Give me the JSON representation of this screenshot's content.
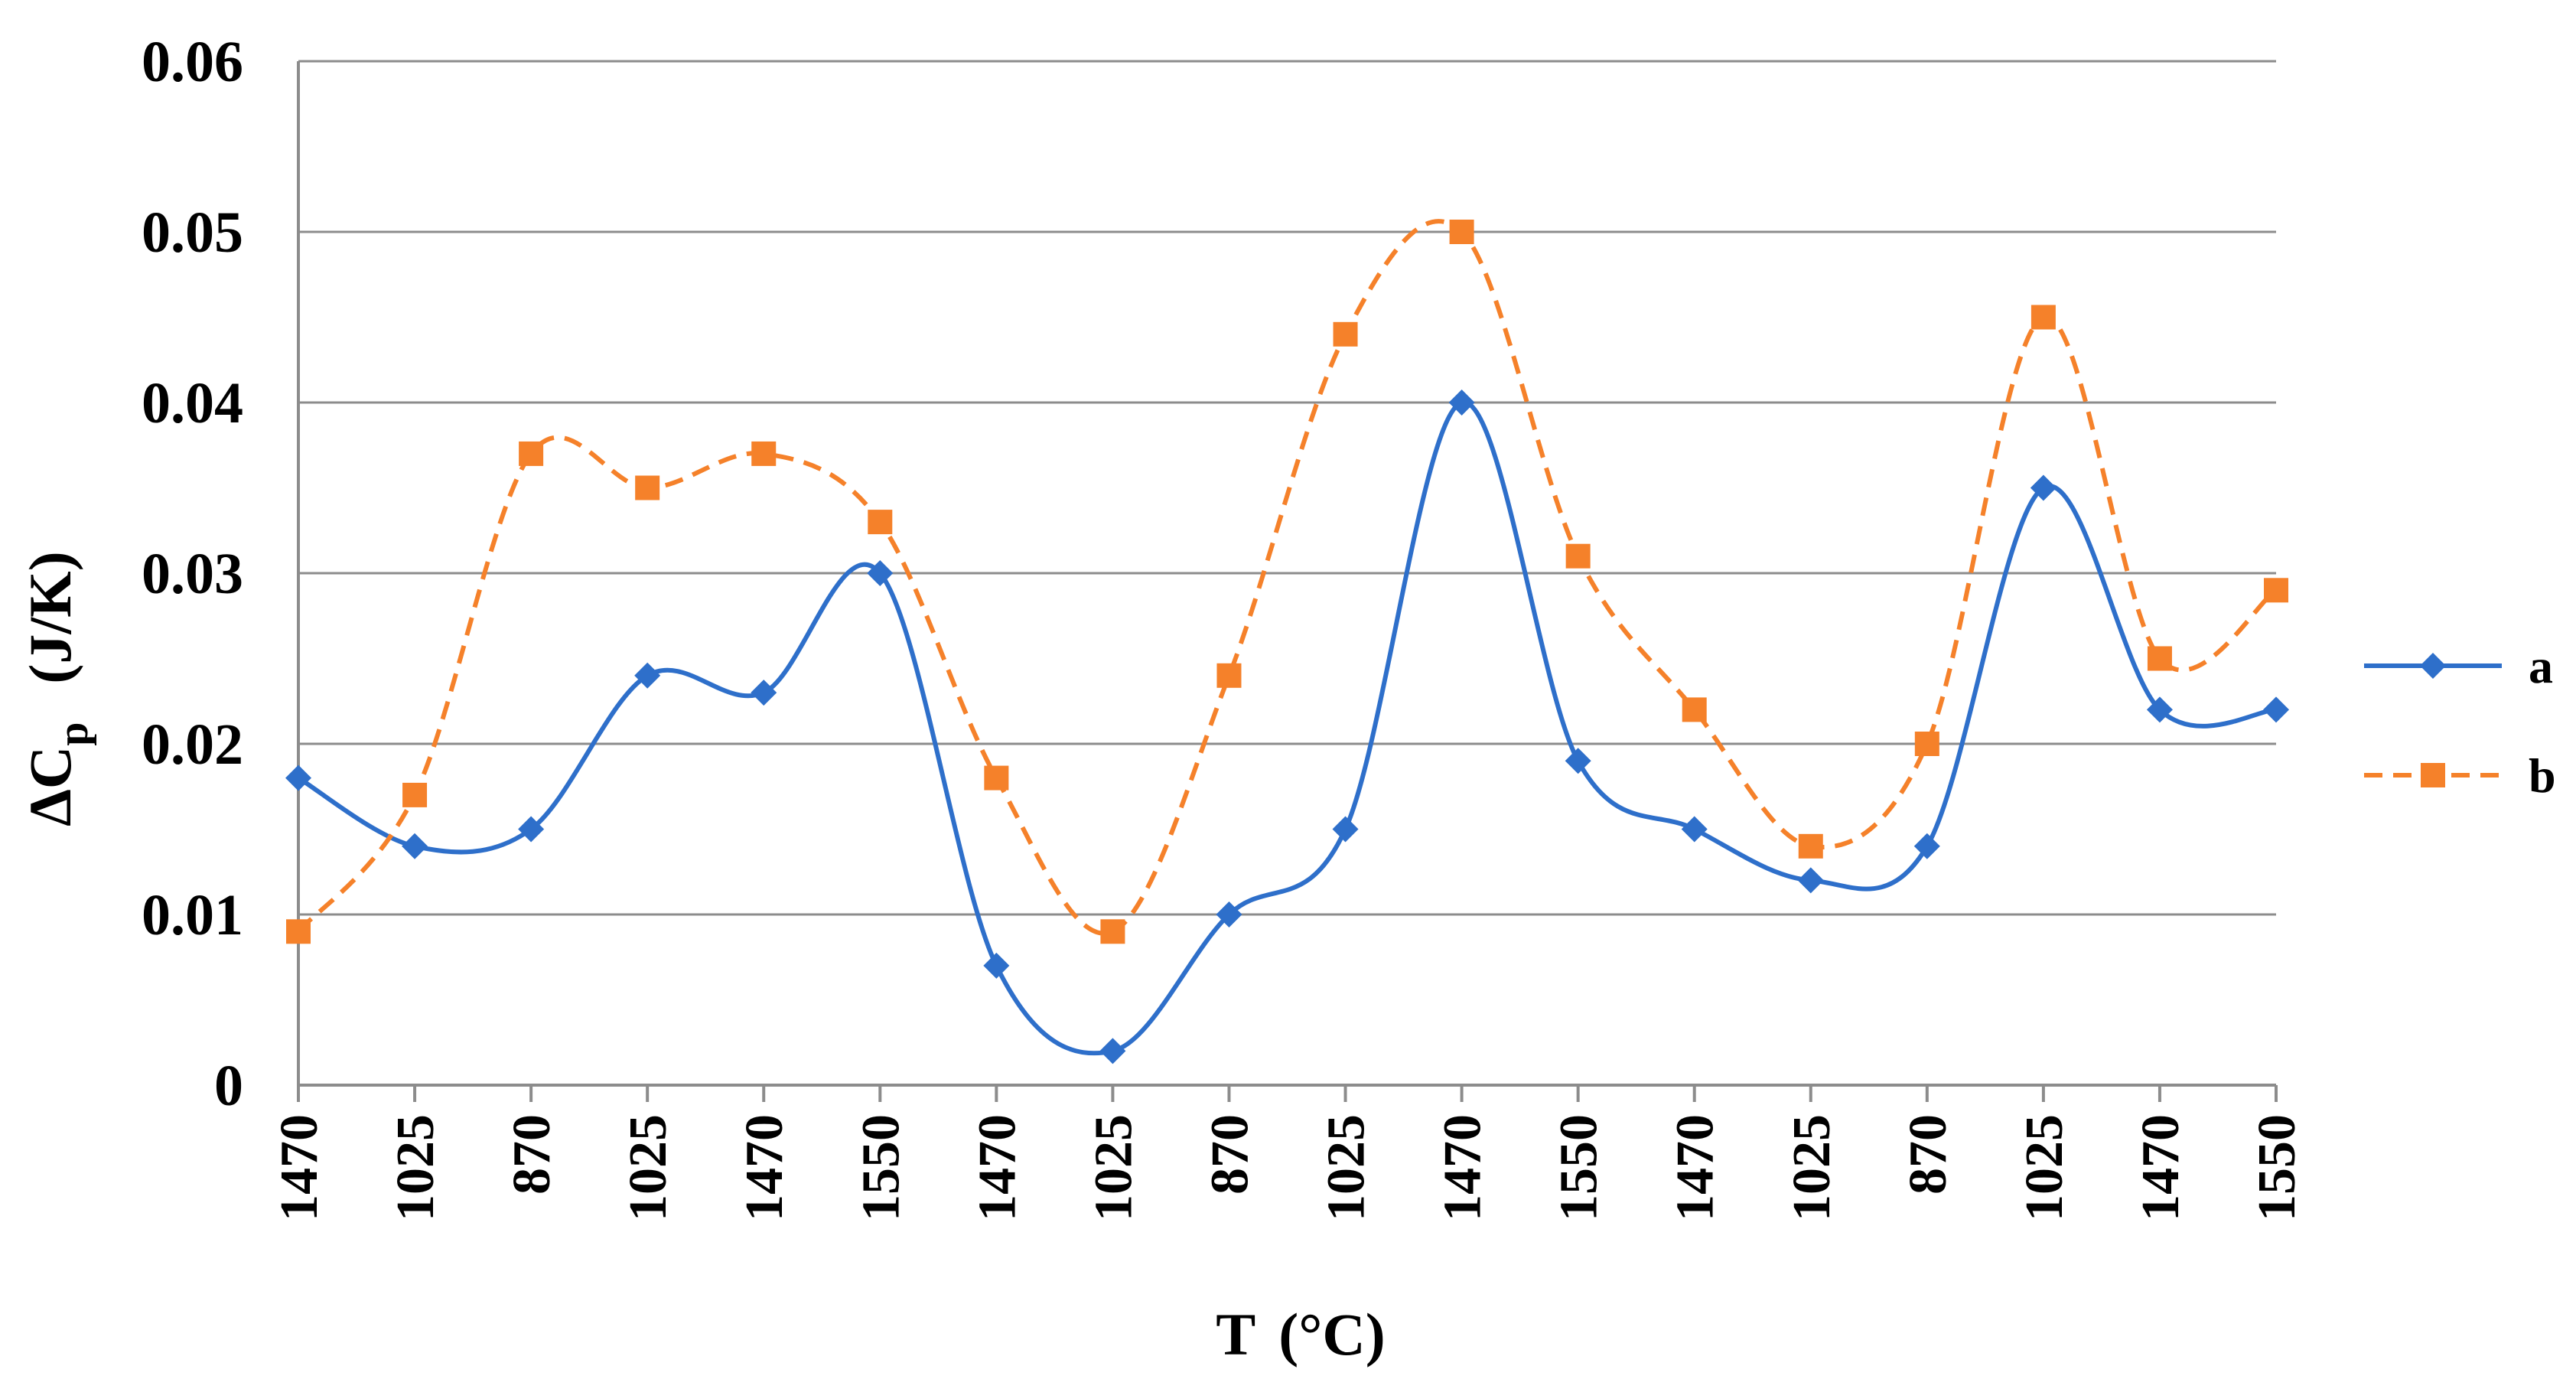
{
  "chart_data": {
    "type": "line",
    "title": "",
    "xlabel": "T",
    "xlabel_unit": "(°C)",
    "ylabel_symbol": "ΔC",
    "ylabel_sub": "p",
    "ylabel_unit": "(J/K)",
    "categories": [
      "1470",
      "1025",
      "870",
      "1025",
      "1470",
      "1550",
      "1470",
      "1025",
      "870",
      "1025",
      "1470",
      "1550",
      "1470",
      "1025",
      "870",
      "1025",
      "1470",
      "1550"
    ],
    "ylim": [
      0,
      0.06
    ],
    "yticks": [
      0,
      0.01,
      0.02,
      0.03,
      0.04,
      0.05,
      0.06
    ],
    "ytick_labels": [
      "0",
      "0.01",
      "0.02",
      "0.03",
      "0.04",
      "0.05",
      "0.06"
    ],
    "grid": true,
    "legend_position": "right",
    "smooth": true,
    "series": [
      {
        "name": "a",
        "color": "#2e6fca",
        "line_style": "solid",
        "marker": "diamond",
        "values": [
          0.018,
          0.014,
          0.015,
          0.024,
          0.023,
          0.03,
          0.007,
          0.002,
          0.01,
          0.015,
          0.04,
          0.019,
          0.015,
          0.012,
          0.014,
          0.035,
          0.022,
          0.022
        ]
      },
      {
        "name": "b",
        "color": "#f5812a",
        "line_style": "dashed",
        "marker": "square",
        "values": [
          0.009,
          0.017,
          0.037,
          0.035,
          0.037,
          0.033,
          0.018,
          0.009,
          0.024,
          0.044,
          0.05,
          0.031,
          0.022,
          0.014,
          0.02,
          0.045,
          0.025,
          0.029
        ]
      }
    ]
  }
}
